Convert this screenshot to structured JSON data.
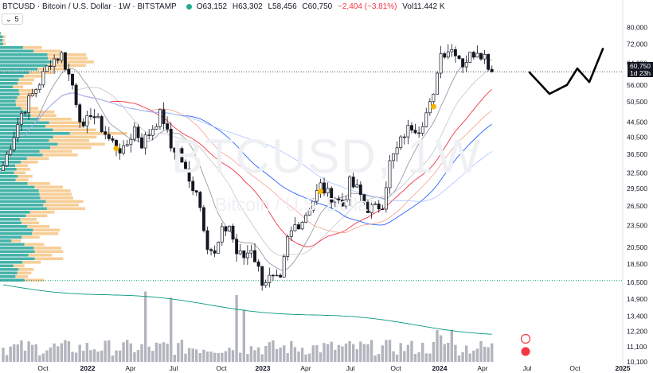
{
  "header": {
    "title": "BTCUSD · Bitcoin / U.S. Dollar · 1W · BITSTAMP",
    "open": "O63,152",
    "high": "H63,302",
    "low": "L58,456",
    "close": "C60,750",
    "change": "−2,404 (−3.81%)",
    "volume": "Vol11.442 K"
  },
  "indicator_badge": {
    "icon": "chevron-down-icon",
    "value": "5"
  },
  "watermark": {
    "symbol": "BTCUSD, 1W",
    "name": "Bitcoin / U.S. Dollar"
  },
  "price_tag": {
    "value": "60,750",
    "countdown": "1d 23h"
  },
  "colors": {
    "up": "#131722",
    "down": "#131722",
    "ma_gray": "#8d8f96",
    "ma_light": "#c4c6cc",
    "ma_red": "#f23645",
    "ma_blue": "#2962ff",
    "ma_light_red": "#f7a18f",
    "ma_light_blue": "#a8c3ff",
    "volume": "#b2b5be",
    "volume_ma": "#089981",
    "vp_up": "#26a69a",
    "vp_down": "#f6c585",
    "marker": "#f7b500",
    "support_line": "#089981"
  },
  "chart_data": {
    "type": "candlestick",
    "yscale": "log",
    "ylim": [
      10100,
      85000
    ],
    "y_ticks": [
      "80,000",
      "72,000",
      "64,000",
      "56,000",
      "50,500",
      "44,500",
      "40,500",
      "36,500",
      "32,500",
      "29,500",
      "26,500",
      "23,500",
      "20,500",
      "18,500",
      "16,500",
      "14,900",
      "13,400",
      "12,200",
      "11,100",
      "10,100"
    ],
    "x_ticks": [
      "Oct",
      "2022",
      "Apr",
      "Jul",
      "Oct",
      "2023",
      "Apr",
      "Jul",
      "Oct",
      "2024",
      "Apr",
      "Jul",
      "Oct",
      "2025"
    ],
    "series": [
      {
        "name": "price",
        "anchors": [
          [
            0,
            34000
          ],
          [
            5,
            47000
          ],
          [
            10,
            57000
          ],
          [
            13,
            65000
          ],
          [
            16,
            67500
          ],
          [
            19,
            56000
          ],
          [
            22,
            42000
          ],
          [
            24,
            47500
          ],
          [
            27,
            43000
          ],
          [
            29,
            40000
          ],
          [
            33,
            37000
          ],
          [
            36,
            43000
          ],
          [
            38,
            39000
          ],
          [
            40,
            41500
          ],
          [
            43,
            46500
          ],
          [
            44,
            45000
          ],
          [
            46,
            38000
          ],
          [
            48,
            37500
          ],
          [
            51,
            30500
          ],
          [
            53,
            29500
          ],
          [
            56,
            21000
          ],
          [
            58,
            19500
          ],
          [
            60,
            22500
          ],
          [
            62,
            23500
          ],
          [
            64,
            19800
          ],
          [
            66,
            19300
          ],
          [
            68,
            20500
          ],
          [
            71,
            16700
          ],
          [
            73,
            16900
          ],
          [
            76,
            16500
          ],
          [
            78,
            21500
          ],
          [
            80,
            23500
          ],
          [
            82,
            24300
          ],
          [
            85,
            27500
          ],
          [
            87,
            30000
          ],
          [
            89,
            28500
          ],
          [
            91,
            28000
          ],
          [
            93,
            26600
          ],
          [
            95,
            30500
          ],
          [
            97,
            29300
          ],
          [
            100,
            26200
          ],
          [
            102,
            26000
          ],
          [
            104,
            27000
          ],
          [
            106,
            34500
          ],
          [
            108,
            37500
          ],
          [
            110,
            41500
          ],
          [
            112,
            43500
          ],
          [
            114,
            43000
          ],
          [
            116,
            47000
          ],
          [
            118,
            51500
          ],
          [
            119,
            62000
          ],
          [
            120,
            68000
          ],
          [
            122,
            70000
          ],
          [
            124,
            69500
          ],
          [
            126,
            64000
          ],
          [
            128,
            67000
          ],
          [
            130,
            70000
          ],
          [
            132,
            67000
          ],
          [
            134,
            60750
          ]
        ]
      },
      {
        "name": "projection",
        "values_by_month": [
          [
            "2024-07",
            60500
          ],
          [
            "2024-08",
            53000
          ],
          [
            "2024-09",
            56000
          ],
          [
            "2024-10",
            62000
          ],
          [
            "2024-11",
            57000
          ],
          [
            "2024-12",
            70000
          ]
        ]
      },
      {
        "name": "volume",
        "unit": "relative"
      }
    ],
    "horizontal_line": 16700
  }
}
